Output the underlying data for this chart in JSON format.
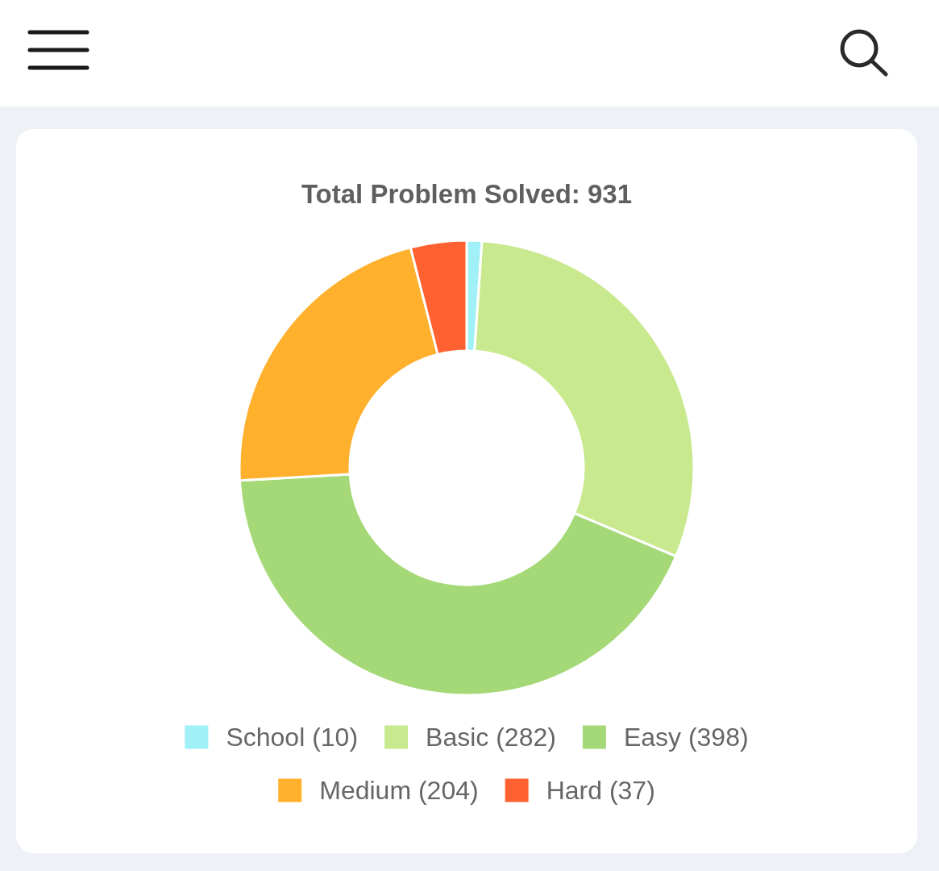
{
  "chart_data": {
    "type": "donut",
    "title": "Total Problem Solved: 931",
    "categories": [
      "School (10)",
      "Basic (282)",
      "Easy (398)",
      "Medium (204)",
      "Hard (37)"
    ],
    "values": [
      10,
      282,
      398,
      204,
      37
    ],
    "colors": [
      "#9ff0f7",
      "#c9e98f",
      "#a5d877",
      "#ffb02c",
      "#ff6230"
    ],
    "legend": "bottom"
  }
}
